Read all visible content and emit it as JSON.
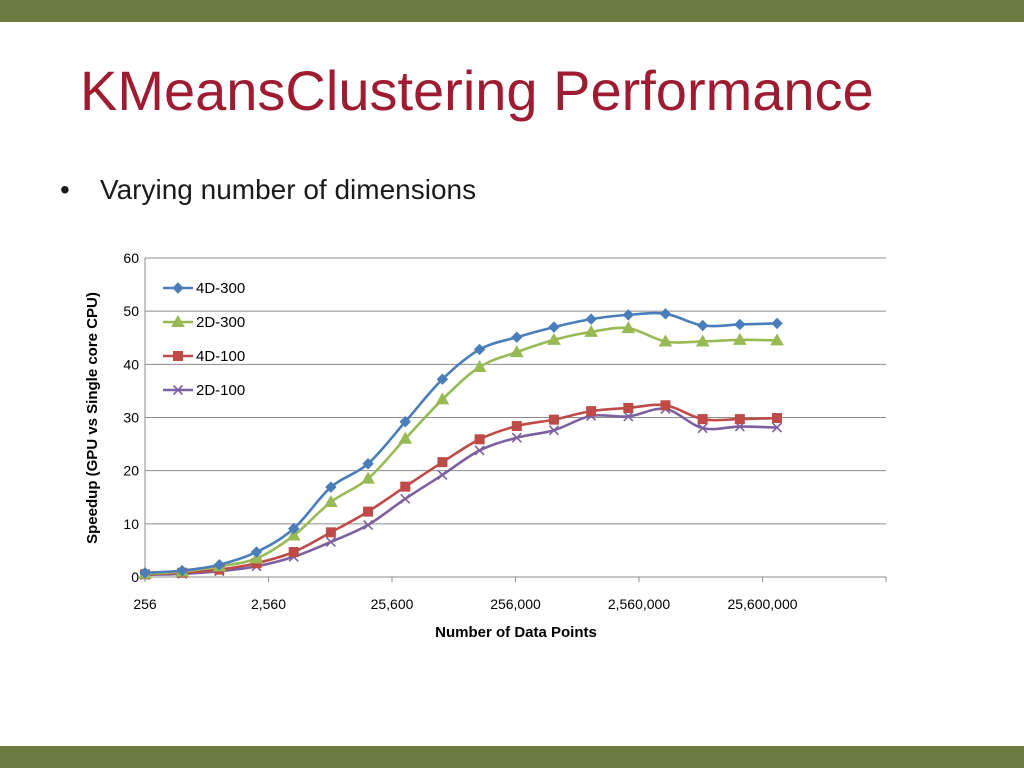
{
  "slide": {
    "title": "KMeansClustering Performance",
    "bullet": "Varying number of dimensions",
    "bullet_marker": "•",
    "bar_color": "#6b7a3e",
    "title_color": "#9e1b32"
  },
  "chart_data": {
    "type": "line",
    "title": "",
    "xlabel": "Number of Data Points",
    "ylabel": "Speedup (GPU vs Single core CPU)",
    "x_scale": "log",
    "x_tick_labels": [
      "256",
      "2,560",
      "25,600",
      "256,000",
      "2,560,000",
      "25,600,000"
    ],
    "x_tick_values": [
      256,
      2560,
      25600,
      256000,
      2560000,
      25600000
    ],
    "y_ticks": [
      "0",
      "10",
      "20",
      "30",
      "40",
      "50",
      "60"
    ],
    "ylim": [
      0,
      60
    ],
    "xlim": [
      256,
      256000000
    ],
    "grid": "horizontal",
    "legend_position": "top-left",
    "x": [
      256,
      512,
      1024,
      2048,
      4096,
      8192,
      16384,
      32768,
      65536,
      131072,
      262144,
      524288,
      1048576,
      2097152,
      4194304,
      8388608,
      16777216,
      33554432
    ],
    "series": [
      {
        "name": "4D-300",
        "color": "#4a7ebb",
        "marker": "diamond",
        "values": [
          0.8,
          1.2,
          2.3,
          4.7,
          9.1,
          16.9,
          21.3,
          29.2,
          37.2,
          42.8,
          45.1,
          47.0,
          48.5,
          49.3,
          49.5,
          47.3,
          47.5,
          47.7
        ]
      },
      {
        "name": "2D-300",
        "color": "#98b954",
        "marker": "triangle",
        "values": [
          0.6,
          1.0,
          2.0,
          3.5,
          7.8,
          14.1,
          18.5,
          26.0,
          33.4,
          39.5,
          42.3,
          44.6,
          46.1,
          46.8,
          44.3,
          44.3,
          44.6,
          44.5
        ]
      },
      {
        "name": "4D-100",
        "color": "#be4b48",
        "marker": "square",
        "values": [
          0.5,
          0.8,
          1.4,
          2.6,
          4.7,
          8.4,
          12.3,
          17.0,
          21.6,
          25.9,
          28.4,
          29.6,
          31.2,
          31.8,
          32.3,
          29.7,
          29.7,
          29.9
        ]
      },
      {
        "name": "2D-100",
        "color": "#7d60a0",
        "marker": "x",
        "values": [
          0.4,
          0.6,
          1.1,
          2.0,
          3.8,
          6.6,
          9.8,
          14.7,
          19.2,
          23.8,
          26.2,
          27.6,
          30.3,
          30.2,
          31.6,
          28.0,
          28.3,
          28.1
        ]
      }
    ]
  }
}
